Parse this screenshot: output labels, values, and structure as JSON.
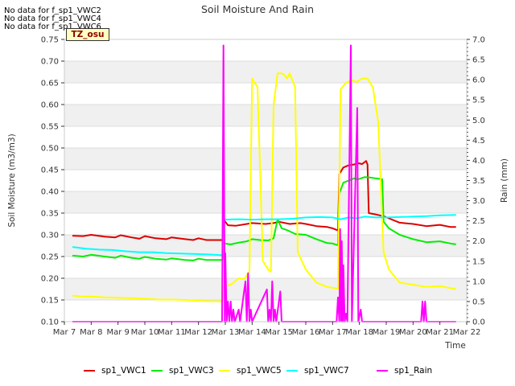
{
  "notes": [
    "No data for f_sp1_VWC2",
    "No data for f_sp1_VWC4",
    "No data for f_sp1_VWC6"
  ],
  "badge": "TZ_osu",
  "chart_data": {
    "type": "line",
    "title": "Soil Moisture And Rain",
    "xlabel": "Time",
    "ylabel_left": "Soil Moisture (m3/m3)",
    "ylabel_right": "Rain (mm)",
    "x_ticks": [
      "Mar 7",
      "Mar 8",
      "Mar 9",
      "Mar 10",
      "Mar 11",
      "Mar 12",
      "Mar 13",
      "Mar 14",
      "Mar 15",
      "Mar 16",
      "Mar 17",
      "Mar 18",
      "Mar 19",
      "Mar 20",
      "Mar 21",
      "Mar 22"
    ],
    "xlim": [
      7,
      22
    ],
    "ylim_left": [
      0.1,
      0.75
    ],
    "ylim_right": [
      0.0,
      7.0
    ],
    "left_ticks": [
      0.1,
      0.15,
      0.2,
      0.25,
      0.3,
      0.35,
      0.4,
      0.45,
      0.5,
      0.55,
      0.6,
      0.65,
      0.7,
      0.75
    ],
    "right_ticks": [
      0.0,
      0.5,
      1.0,
      1.5,
      2.0,
      2.5,
      3.0,
      3.5,
      4.0,
      4.5,
      5.0,
      5.5,
      6.0,
      6.5,
      7.0
    ],
    "series": [
      {
        "name": "sp1_VWC1",
        "color": "#dd0000",
        "axis": "left",
        "points": [
          [
            7.3,
            0.298
          ],
          [
            7.7,
            0.297
          ],
          [
            8.0,
            0.3
          ],
          [
            8.5,
            0.296
          ],
          [
            8.9,
            0.294
          ],
          [
            9.1,
            0.299
          ],
          [
            9.5,
            0.294
          ],
          [
            9.8,
            0.291
          ],
          [
            10.0,
            0.297
          ],
          [
            10.4,
            0.292
          ],
          [
            10.8,
            0.29
          ],
          [
            11.0,
            0.294
          ],
          [
            11.5,
            0.29
          ],
          [
            11.8,
            0.288
          ],
          [
            12.0,
            0.292
          ],
          [
            12.3,
            0.288
          ],
          [
            12.9,
            0.288
          ],
          [
            12.95,
            0.334
          ],
          [
            13.1,
            0.322
          ],
          [
            13.4,
            0.321
          ],
          [
            13.8,
            0.325
          ],
          [
            14.0,
            0.327
          ],
          [
            14.5,
            0.325
          ],
          [
            14.8,
            0.327
          ],
          [
            15.0,
            0.33
          ],
          [
            15.4,
            0.325
          ],
          [
            15.8,
            0.327
          ],
          [
            16.0,
            0.325
          ],
          [
            16.4,
            0.32
          ],
          [
            16.8,
            0.318
          ],
          [
            17.0,
            0.315
          ],
          [
            17.2,
            0.31
          ],
          [
            17.25,
            0.44
          ],
          [
            17.4,
            0.455
          ],
          [
            17.6,
            0.46
          ],
          [
            17.8,
            0.462
          ],
          [
            17.95,
            0.465
          ],
          [
            18.1,
            0.463
          ],
          [
            18.25,
            0.47
          ],
          [
            18.3,
            0.462
          ],
          [
            18.35,
            0.35
          ],
          [
            18.6,
            0.347
          ],
          [
            18.9,
            0.343
          ],
          [
            19.1,
            0.338
          ],
          [
            19.5,
            0.328
          ],
          [
            20.0,
            0.325
          ],
          [
            20.5,
            0.32
          ],
          [
            21.0,
            0.323
          ],
          [
            21.4,
            0.318
          ],
          [
            21.6,
            0.318
          ]
        ]
      },
      {
        "name": "sp1_VWC3",
        "color": "#00ee00",
        "axis": "left",
        "points": [
          [
            7.3,
            0.252
          ],
          [
            7.7,
            0.25
          ],
          [
            8.0,
            0.254
          ],
          [
            8.5,
            0.25
          ],
          [
            8.9,
            0.247
          ],
          [
            9.1,
            0.252
          ],
          [
            9.5,
            0.247
          ],
          [
            9.8,
            0.245
          ],
          [
            10.0,
            0.249
          ],
          [
            10.4,
            0.245
          ],
          [
            10.8,
            0.243
          ],
          [
            11.0,
            0.246
          ],
          [
            11.5,
            0.242
          ],
          [
            11.8,
            0.241
          ],
          [
            12.0,
            0.245
          ],
          [
            12.3,
            0.242
          ],
          [
            12.9,
            0.242
          ],
          [
            12.95,
            0.28
          ],
          [
            13.2,
            0.278
          ],
          [
            13.5,
            0.282
          ],
          [
            13.8,
            0.285
          ],
          [
            14.0,
            0.29
          ],
          [
            14.3,
            0.288
          ],
          [
            14.6,
            0.287
          ],
          [
            14.8,
            0.292
          ],
          [
            14.95,
            0.336
          ],
          [
            15.1,
            0.315
          ],
          [
            15.3,
            0.311
          ],
          [
            15.6,
            0.302
          ],
          [
            16.0,
            0.3
          ],
          [
            16.4,
            0.29
          ],
          [
            16.8,
            0.281
          ],
          [
            17.0,
            0.28
          ],
          [
            17.2,
            0.276
          ],
          [
            17.25,
            0.395
          ],
          [
            17.4,
            0.42
          ],
          [
            17.6,
            0.425
          ],
          [
            17.8,
            0.43
          ],
          [
            17.95,
            0.428
          ],
          [
            18.2,
            0.433
          ],
          [
            18.4,
            0.432
          ],
          [
            18.6,
            0.43
          ],
          [
            18.85,
            0.428
          ],
          [
            18.9,
            0.33
          ],
          [
            19.1,
            0.315
          ],
          [
            19.5,
            0.3
          ],
          [
            20.0,
            0.29
          ],
          [
            20.5,
            0.283
          ],
          [
            21.0,
            0.285
          ],
          [
            21.4,
            0.28
          ],
          [
            21.6,
            0.278
          ]
        ]
      },
      {
        "name": "sp1_VWC5",
        "color": "#ffff00",
        "axis": "left",
        "points": [
          [
            7.3,
            0.16
          ],
          [
            7.7,
            0.158
          ],
          [
            8.0,
            0.158
          ],
          [
            8.5,
            0.156
          ],
          [
            9.0,
            0.155
          ],
          [
            9.5,
            0.154
          ],
          [
            10.0,
            0.153
          ],
          [
            10.5,
            0.151
          ],
          [
            11.0,
            0.151
          ],
          [
            11.5,
            0.15
          ],
          [
            12.0,
            0.148
          ],
          [
            12.5,
            0.147
          ],
          [
            12.9,
            0.147
          ],
          [
            12.95,
            0.182
          ],
          [
            13.2,
            0.185
          ],
          [
            13.5,
            0.2
          ],
          [
            13.7,
            0.198
          ],
          [
            13.9,
            0.215
          ],
          [
            14.0,
            0.66
          ],
          [
            14.2,
            0.64
          ],
          [
            14.4,
            0.24
          ],
          [
            14.6,
            0.22
          ],
          [
            14.7,
            0.215
          ],
          [
            14.8,
            0.6
          ],
          [
            14.95,
            0.672
          ],
          [
            15.1,
            0.672
          ],
          [
            15.2,
            0.668
          ],
          [
            15.3,
            0.66
          ],
          [
            15.4,
            0.672
          ],
          [
            15.6,
            0.64
          ],
          [
            15.7,
            0.26
          ],
          [
            16.0,
            0.22
          ],
          [
            16.4,
            0.19
          ],
          [
            16.8,
            0.18
          ],
          [
            17.0,
            0.178
          ],
          [
            17.2,
            0.176
          ],
          [
            17.3,
            0.635
          ],
          [
            17.5,
            0.65
          ],
          [
            17.7,
            0.656
          ],
          [
            17.9,
            0.652
          ],
          [
            18.1,
            0.66
          ],
          [
            18.3,
            0.66
          ],
          [
            18.5,
            0.64
          ],
          [
            18.7,
            0.56
          ],
          [
            18.9,
            0.26
          ],
          [
            19.1,
            0.22
          ],
          [
            19.5,
            0.19
          ],
          [
            20.0,
            0.185
          ],
          [
            20.5,
            0.18
          ],
          [
            21.0,
            0.182
          ],
          [
            21.5,
            0.176
          ],
          [
            21.6,
            0.175
          ]
        ]
      },
      {
        "name": "sp1_VWC7",
        "color": "#00ffff",
        "axis": "left",
        "points": [
          [
            7.3,
            0.272
          ],
          [
            7.8,
            0.268
          ],
          [
            8.3,
            0.266
          ],
          [
            8.8,
            0.265
          ],
          [
            9.3,
            0.262
          ],
          [
            9.8,
            0.26
          ],
          [
            10.3,
            0.26
          ],
          [
            10.8,
            0.258
          ],
          [
            11.3,
            0.257
          ],
          [
            11.8,
            0.256
          ],
          [
            12.3,
            0.255
          ],
          [
            12.9,
            0.253
          ],
          [
            12.95,
            0.335
          ],
          [
            13.5,
            0.336
          ],
          [
            14.0,
            0.335
          ],
          [
            14.5,
            0.336
          ],
          [
            15.0,
            0.336
          ],
          [
            15.5,
            0.337
          ],
          [
            16.0,
            0.34
          ],
          [
            16.5,
            0.341
          ],
          [
            17.0,
            0.34
          ],
          [
            17.3,
            0.336
          ],
          [
            17.6,
            0.34
          ],
          [
            17.9,
            0.338
          ],
          [
            18.2,
            0.342
          ],
          [
            18.6,
            0.34
          ],
          [
            19.0,
            0.34
          ],
          [
            19.5,
            0.341
          ],
          [
            20.0,
            0.342
          ],
          [
            20.5,
            0.343
          ],
          [
            21.0,
            0.345
          ],
          [
            21.6,
            0.346
          ]
        ]
      },
      {
        "name": "sp1_Rain",
        "color": "#ff00ff",
        "axis": "right",
        "points": [
          [
            7.3,
            0.0
          ],
          [
            12.88,
            0.0
          ],
          [
            12.93,
            6.85
          ],
          [
            12.98,
            0.0
          ],
          [
            13.0,
            1.7
          ],
          [
            13.05,
            0.0
          ],
          [
            13.1,
            0.5
          ],
          [
            13.15,
            0.0
          ],
          [
            13.2,
            0.5
          ],
          [
            13.25,
            0.0
          ],
          [
            13.3,
            0.3
          ],
          [
            13.35,
            0.0
          ],
          [
            13.5,
            0.3
          ],
          [
            13.55,
            0.0
          ],
          [
            13.75,
            1.0
          ],
          [
            13.8,
            0.0
          ],
          [
            13.85,
            1.2
          ],
          [
            13.9,
            0.0
          ],
          [
            13.95,
            0.3
          ],
          [
            14.0,
            0.0
          ],
          [
            14.55,
            0.8
          ],
          [
            14.6,
            0.0
          ],
          [
            14.65,
            0.3
          ],
          [
            14.7,
            0.0
          ],
          [
            14.75,
            1.0
          ],
          [
            14.8,
            0.0
          ],
          [
            14.85,
            0.3
          ],
          [
            14.9,
            0.0
          ],
          [
            15.05,
            0.75
          ],
          [
            15.1,
            0.0
          ],
          [
            17.15,
            0.0
          ],
          [
            17.2,
            0.6
          ],
          [
            17.25,
            0.0
          ],
          [
            17.28,
            2.3
          ],
          [
            17.32,
            0.0
          ],
          [
            17.34,
            2.0
          ],
          [
            17.38,
            0.0
          ],
          [
            17.4,
            1.4
          ],
          [
            17.45,
            0.0
          ],
          [
            17.5,
            0.2
          ],
          [
            17.55,
            0.0
          ],
          [
            17.68,
            6.85
          ],
          [
            17.72,
            0.0
          ],
          [
            17.92,
            5.3
          ],
          [
            17.96,
            0.0
          ],
          [
            18.05,
            0.3
          ],
          [
            18.1,
            0.0
          ],
          [
            20.3,
            0.0
          ],
          [
            20.35,
            0.5
          ],
          [
            20.4,
            0.0
          ],
          [
            20.45,
            0.5
          ],
          [
            20.5,
            0.0
          ],
          [
            21.6,
            0.0
          ]
        ]
      }
    ],
    "grid": true,
    "legend_position": "bottom"
  }
}
